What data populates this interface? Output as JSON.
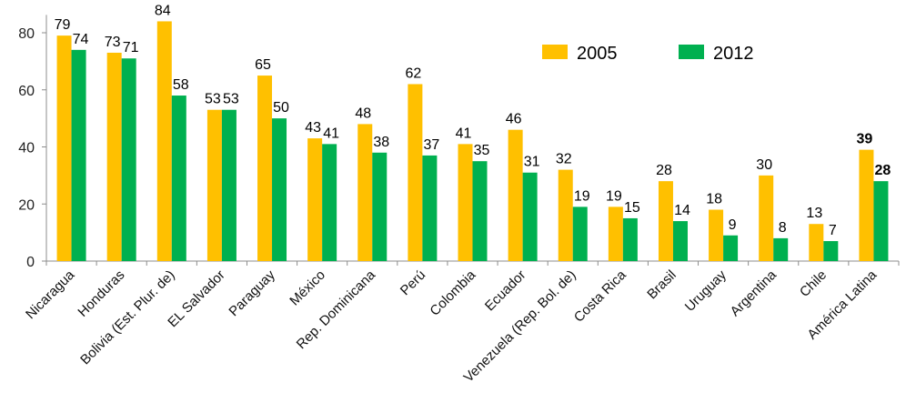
{
  "chart_data": {
    "type": "bar",
    "title": "",
    "xlabel": "",
    "ylabel": "",
    "ylim": [
      0,
      85
    ],
    "yticks": [
      0,
      20,
      40,
      60,
      80
    ],
    "grid": false,
    "legend_position": "top-right",
    "categories": [
      "Nicaragua",
      "Honduras",
      "Bolivia (Est. Plur. de)",
      "EL Salvador",
      "Paraguay",
      "México",
      "Rep. Dominicana",
      "Perú",
      "Colombia",
      "Ecuador",
      "Venezuela (Rep. Bol. de)",
      "Costa Rica",
      "Brasil",
      "Uruguay",
      "Argentina",
      "Chile",
      "América Latina"
    ],
    "series": [
      {
        "name": "2005",
        "color": "#FFC000",
        "values": [
          79,
          73,
          84,
          53,
          65,
          43,
          48,
          62,
          41,
          46,
          32,
          19,
          28,
          18,
          30,
          13,
          39
        ]
      },
      {
        "name": "2012",
        "color": "#00B050",
        "values": [
          74,
          71,
          58,
          53,
          50,
          41,
          38,
          37,
          35,
          31,
          19,
          15,
          14,
          9,
          8,
          7,
          28
        ]
      }
    ],
    "bold_label_categories": [
      "América Latina"
    ]
  }
}
